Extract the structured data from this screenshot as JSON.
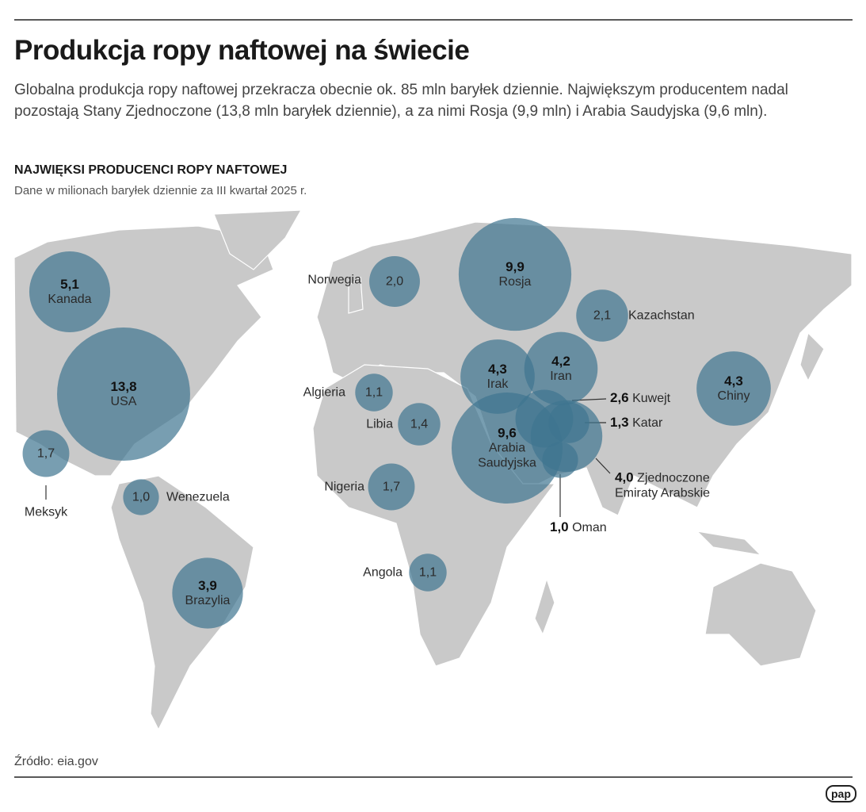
{
  "header": {
    "title": "Produkcja ropy naftowej na świecie",
    "subtitle": "Globalna produkcja ropy naftowej przekracza obecnie ok. 85 mln baryłek dziennie. Największym producentem nadal pozostają Stany Zjednoczone (13,8 mln baryłek dziennie), a za nimi Rosja (9,9 mln) i Arabia Saudyjska (9,6 mln)."
  },
  "chart_data": {
    "type": "bubble-map",
    "title": "NAJWIĘKSI PRODUCENCI ROPY NAFTOWEJ",
    "subtitle": "Dane w milionach baryłek dziennie za III kwartał 2025 r.",
    "color": "#3f7590",
    "categories": [
      "Kanada",
      "USA",
      "Meksyk",
      "Wenezuela",
      "Brazylia",
      "Norwegia",
      "Rosja",
      "Kazachstan",
      "Algieria",
      "Libia",
      "Nigeria",
      "Angola",
      "Irak",
      "Iran",
      "Arabia Saudyjska",
      "Kuwejt",
      "Katar",
      "Zjednoczone Emiraty Arabskie",
      "Oman",
      "Chiny"
    ],
    "values": [
      5.1,
      13.8,
      1.7,
      1.0,
      3.9,
      2.0,
      9.9,
      2.1,
      1.1,
      1.4,
      1.7,
      1.1,
      4.3,
      4.2,
      9.6,
      2.6,
      1.3,
      4.0,
      1.0,
      4.3
    ],
    "value_labels": [
      "5,1",
      "13,8",
      "1,7",
      "1,0",
      "3,9",
      "2,0",
      "9,9",
      "2,1",
      "1,1",
      "1,4",
      "1,7",
      "1,1",
      "4,3",
      "4,2",
      "9,6",
      "2,6",
      "1,3",
      "4,0",
      "1,0",
      "4,3"
    ]
  },
  "footer": {
    "source": "Źródło: eia.gov",
    "logo": "pap"
  }
}
